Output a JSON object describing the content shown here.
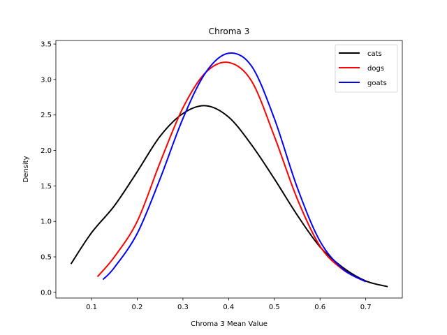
{
  "chart_data": {
    "type": "line",
    "title": "Chroma 3",
    "xlabel": "Chroma 3 Mean Value",
    "ylabel": "Density",
    "xlim": [
      0.022,
      0.78
    ],
    "ylim": [
      -0.08,
      3.55
    ],
    "xticks": [
      0.1,
      0.2,
      0.3,
      0.4,
      0.5,
      0.6,
      0.7
    ],
    "xtick_labels": [
      "0.1",
      "0.2",
      "0.3",
      "0.4",
      "0.5",
      "0.6",
      "0.7"
    ],
    "yticks": [
      0.0,
      0.5,
      1.0,
      1.5,
      2.0,
      2.5,
      3.0,
      3.5
    ],
    "ytick_labels": [
      "0.0",
      "0.5",
      "1.0",
      "1.5",
      "2.0",
      "2.5",
      "3.0",
      "3.5"
    ],
    "grid": false,
    "legend_position": "top-right",
    "series": [
      {
        "name": "cats",
        "color": "#000000",
        "x": [
          0.055,
          0.1,
          0.15,
          0.2,
          0.25,
          0.3,
          0.35,
          0.4,
          0.45,
          0.5,
          0.55,
          0.6,
          0.65,
          0.7,
          0.748
        ],
        "y": [
          0.4,
          0.84,
          1.22,
          1.7,
          2.2,
          2.52,
          2.63,
          2.47,
          2.08,
          1.6,
          1.09,
          0.64,
          0.35,
          0.16,
          0.08
        ]
      },
      {
        "name": "dogs",
        "color": "#ff0000",
        "x": [
          0.113,
          0.15,
          0.2,
          0.25,
          0.3,
          0.35,
          0.4,
          0.45,
          0.5,
          0.55,
          0.6,
          0.65,
          0.7
        ],
        "y": [
          0.22,
          0.5,
          1.0,
          1.83,
          2.6,
          3.1,
          3.24,
          2.98,
          2.2,
          1.32,
          0.65,
          0.32,
          0.15
        ]
      },
      {
        "name": "goats",
        "color": "#0000ff",
        "x": [
          0.125,
          0.15,
          0.2,
          0.25,
          0.3,
          0.35,
          0.4,
          0.45,
          0.5,
          0.55,
          0.6,
          0.65,
          0.7
        ],
        "y": [
          0.18,
          0.35,
          0.83,
          1.6,
          2.45,
          3.1,
          3.37,
          3.19,
          2.45,
          1.48,
          0.72,
          0.33,
          0.15
        ]
      }
    ]
  }
}
